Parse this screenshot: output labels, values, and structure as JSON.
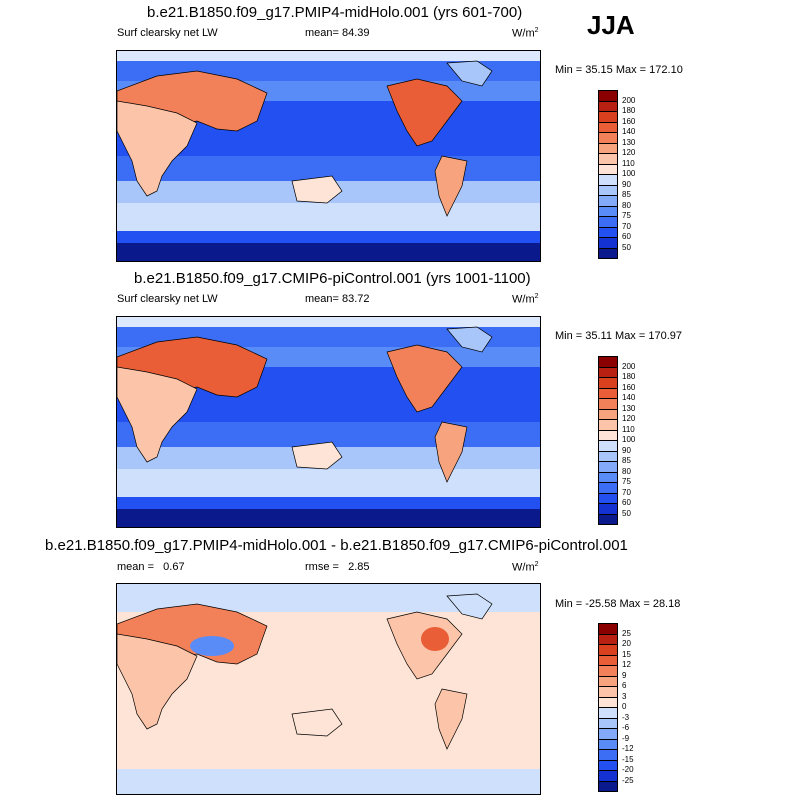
{
  "season": "JJA",
  "colors": {
    "neg": [
      "#0a1a8c",
      "#1432d2",
      "#2350f0",
      "#3c6ef5",
      "#5a8cf8",
      "#82aaf8",
      "#a8c6fa",
      "#cfe0fc"
    ],
    "mid": "#ffffff",
    "pos": [
      "#fde4d6",
      "#fcc4a8",
      "#f7a47e",
      "#f28058",
      "#e95e36",
      "#d9401e",
      "#b82012",
      "#8a0000"
    ],
    "coast": "#000000"
  },
  "chart_data": [
    {
      "type": "heatmap",
      "title": "b.e21.B1850.f09_g17.PMIP4-midHolo.001 (yrs 601-700)",
      "variable": "Surf clearsky net LW",
      "mean_label": "mean=",
      "mean_value": "84.39",
      "units": "W/m",
      "units_exp": "2",
      "minmax": "Min = 35.15 Max = 172.10",
      "min": 35.15,
      "max": 172.1,
      "levels": [
        "200",
        "180",
        "160",
        "140",
        "130",
        "120",
        "110",
        "100",
        "90",
        "85",
        "80",
        "75",
        "70",
        "60",
        "50"
      ]
    },
    {
      "type": "heatmap",
      "title": "b.e21.B1850.f09_g17.CMIP6-piControl.001 (yrs 1001-1100)",
      "variable": "Surf clearsky net LW",
      "mean_label": "mean=",
      "mean_value": "83.72",
      "units": "W/m",
      "units_exp": "2",
      "minmax": "Min = 35.11 Max = 170.97",
      "min": 35.11,
      "max": 170.97,
      "levels": [
        "200",
        "180",
        "160",
        "140",
        "130",
        "120",
        "110",
        "100",
        "90",
        "85",
        "80",
        "75",
        "70",
        "60",
        "50"
      ]
    },
    {
      "type": "heatmap",
      "title": "b.e21.B1850.f09_g17.PMIP4-midHolo.001 - b.e21.B1850.f09_g17.CMIP6-piControl.001",
      "mean_label": "mean =",
      "mean_value": "0.67",
      "rmse_label": "rmse =",
      "rmse_value": "2.85",
      "units": "W/m",
      "units_exp": "2",
      "minmax": "Min = -25.58 Max =  28.18",
      "min": -25.58,
      "max": 28.18,
      "levels": [
        "25",
        "20",
        "15",
        "12",
        "9",
        "6",
        "3",
        "0",
        "-3",
        "-6",
        "-9",
        "-12",
        "-15",
        "-20",
        "-25"
      ]
    }
  ]
}
